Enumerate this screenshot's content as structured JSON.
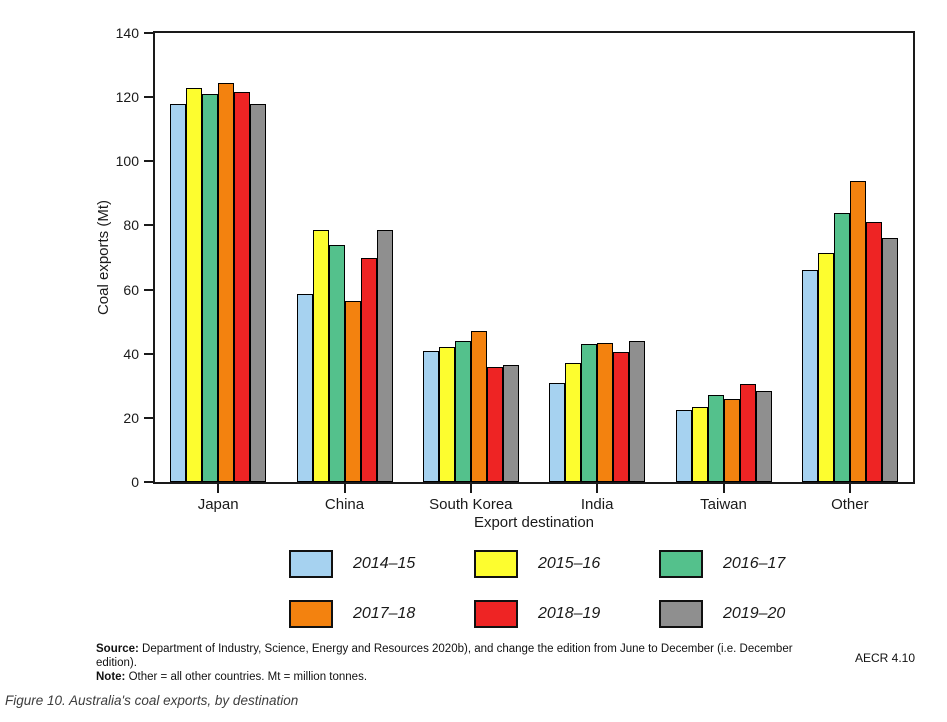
{
  "chart_data": {
    "type": "bar",
    "title": "",
    "xlabel": "Export destination",
    "ylabel": "Coal exports (Mt)",
    "ylim": [
      0,
      140
    ],
    "yticks": [
      0,
      20,
      40,
      60,
      80,
      100,
      120,
      140
    ],
    "grid": false,
    "legend_position": "bottom",
    "categories": [
      "Japan",
      "China",
      "South Korea",
      "India",
      "Taiwan",
      "Other"
    ],
    "series": [
      {
        "name": "2014–15",
        "color": "#a6d2f0",
        "values": [
          118,
          58.5,
          41,
          31,
          22.5,
          66
        ]
      },
      {
        "name": "2015–16",
        "color": "#fdfd2f",
        "values": [
          123,
          78.5,
          42,
          37,
          23.5,
          71.5
        ]
      },
      {
        "name": "2016–17",
        "color": "#54c18c",
        "values": [
          121,
          74,
          44,
          43,
          27,
          84
        ]
      },
      {
        "name": "2017–18",
        "color": "#f3820f",
        "values": [
          124.5,
          56.5,
          47,
          43.5,
          26,
          94
        ]
      },
      {
        "name": "2018–19",
        "color": "#ee2424",
        "values": [
          121.5,
          70,
          36,
          40.5,
          30.5,
          81
        ]
      },
      {
        "name": "2019–20",
        "color": "#8f8f8f",
        "values": [
          118,
          78.5,
          36.5,
          44,
          28.5,
          76
        ]
      }
    ]
  },
  "footer": {
    "source_label": "Source:",
    "source_text": "Department of Industry, Science, Energy and Resources 2020b), and change the edition from June to December (i.e. December edition).",
    "note_label": "Note:",
    "note_text": "Other = all other countries. Mt = million tonnes.",
    "ref_code": "AECR 4.10"
  },
  "caption": "Figure 10. Australia's coal exports, by destination"
}
